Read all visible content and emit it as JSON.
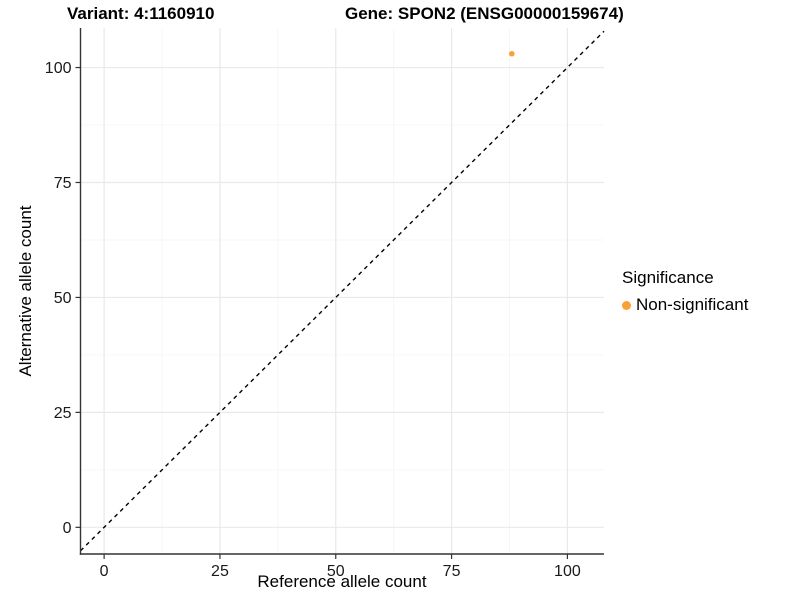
{
  "titles": {
    "variant": "Variant: 4:1160910",
    "gene": "Gene: SPON2 (ENSG00000159674)"
  },
  "axes": {
    "x_label": "Reference allele count",
    "y_label": "Alternative allele count"
  },
  "legend": {
    "title": "Significance",
    "items": [
      {
        "label": "Non-significant",
        "color": "#F9A132",
        "shape": "circle"
      }
    ]
  },
  "chart_data": {
    "type": "scatter",
    "title": "Variant: 4:1160910 — Gene: SPON2 (ENSG00000159674)",
    "xlabel": "Reference allele count",
    "ylabel": "Alternative allele count",
    "x_ticks": [
      0,
      25,
      50,
      75,
      100
    ],
    "y_ticks": [
      0,
      25,
      50,
      75,
      100
    ],
    "xlim": [
      -5.1,
      107.9
    ],
    "ylim": [
      -5.8,
      108.6
    ],
    "grid": {
      "on": true,
      "major_color": "#E9E9E9",
      "minor_color": "#F4F4F4"
    },
    "series": [
      {
        "name": "Non-significant",
        "color": "#F9A132",
        "points": [
          {
            "x": 88,
            "y": 103
          }
        ]
      }
    ],
    "reference_line": {
      "type": "identity",
      "slope": 1,
      "intercept": 0,
      "style": "dashed",
      "color": "#000000"
    },
    "legend_position": "right",
    "axis_color": "#333333",
    "tick_label_color": "#1a1a1a"
  }
}
